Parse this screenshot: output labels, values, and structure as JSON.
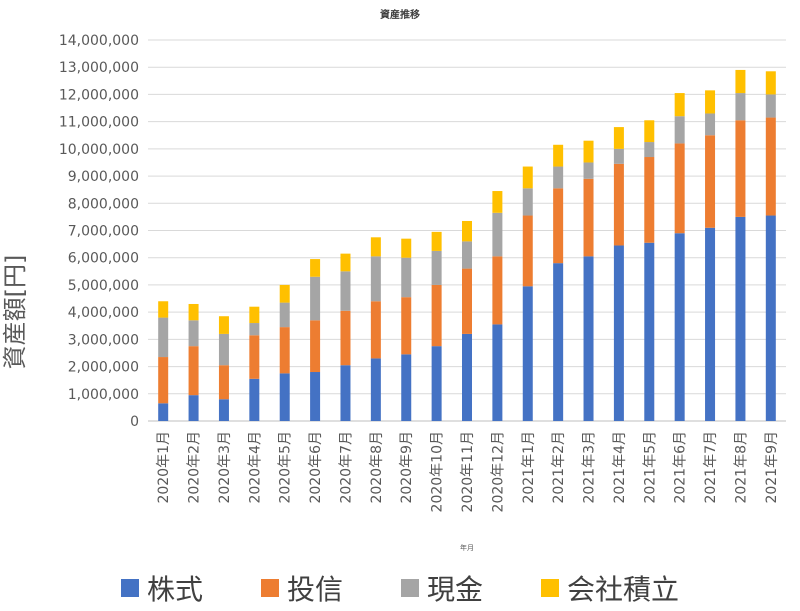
{
  "chart_data": {
    "type": "bar",
    "stacked": true,
    "title": "資産推移",
    "ylabel": "資産額[円]",
    "xlabel": "",
    "ylim": [
      0,
      14000000
    ],
    "ytick_step": 1000000,
    "ytick_labels": [
      "0",
      "1,000,000",
      "2,000,000",
      "3,000,000",
      "4,000,000",
      "5,000,000",
      "6,000,000",
      "7,000,000",
      "8,000,000",
      "9,000,000",
      "10,000,000",
      "11,000,000",
      "12,000,000",
      "13,000,000",
      "14,000,000"
    ],
    "grid": true,
    "legend_position": "bottom",
    "categories": [
      "2020年1月",
      "2020年2月",
      "2020年3月",
      "2020年4月",
      "2020年5月",
      "2020年6月",
      "2020年7月",
      "2020年8月",
      "2020年9月",
      "2020年10月",
      "2020年11月",
      "2020年12月",
      "2021年1月",
      "2021年2月",
      "2021年3月",
      "2021年4月",
      "2021年5月",
      "2021年6月",
      "2021年7月",
      "2021年8月",
      "2021年9月"
    ],
    "tick_note": "年月",
    "series": [
      {
        "name": "株式",
        "color": "#4472C4",
        "values": [
          650000,
          950000,
          800000,
          1550000,
          1750000,
          1800000,
          2050000,
          2300000,
          2450000,
          2750000,
          3200000,
          3550000,
          4950000,
          5800000,
          6050000,
          6450000,
          6550000,
          6900000,
          7100000,
          7500000,
          7550000
        ]
      },
      {
        "name": "投信",
        "color": "#ED7D31",
        "values": [
          1700000,
          1800000,
          1250000,
          1600000,
          1700000,
          1900000,
          2000000,
          2100000,
          2100000,
          2250000,
          2400000,
          2500000,
          2600000,
          2750000,
          2850000,
          3000000,
          3150000,
          3300000,
          3400000,
          3550000,
          3600000
        ]
      },
      {
        "name": "現金",
        "color": "#A5A5A5",
        "values": [
          1450000,
          950000,
          1150000,
          450000,
          900000,
          1600000,
          1450000,
          1650000,
          1450000,
          1250000,
          1000000,
          1600000,
          1000000,
          800000,
          600000,
          550000,
          550000,
          1000000,
          800000,
          1000000,
          850000
        ]
      },
      {
        "name": "会社積立",
        "color": "#FFC000",
        "values": [
          600000,
          600000,
          650000,
          600000,
          650000,
          650000,
          650000,
          700000,
          700000,
          700000,
          750000,
          800000,
          800000,
          800000,
          800000,
          800000,
          800000,
          850000,
          850000,
          850000,
          850000
        ]
      }
    ]
  }
}
